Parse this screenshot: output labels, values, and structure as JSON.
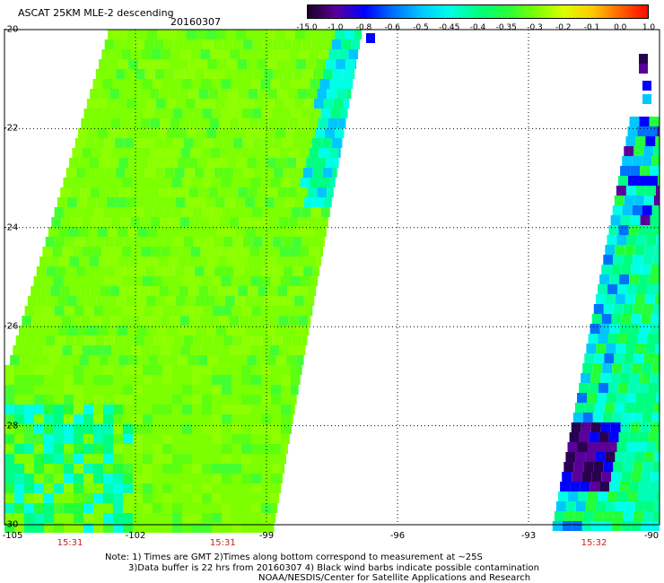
{
  "header": {
    "title": "ASCAT 25KM MLE-2 descending",
    "date": "20160307"
  },
  "colorbar": {
    "labels": [
      "-15.0",
      "-1.0",
      "-0.8",
      "-0.6",
      "-0.5",
      "-0.45",
      "-0.4",
      "-0.35",
      "-0.3",
      "-0.2",
      "-0.1",
      "0.0",
      "1.0"
    ],
    "colors": [
      "#1a0028",
      "#5a009a",
      "#0000ff",
      "#0070ff",
      "#00c8ff",
      "#00ffe6",
      "#00ff80",
      "#24ff3c",
      "#7cff00",
      "#dcff00",
      "#ffc800",
      "#ff6000",
      "#ff0000"
    ]
  },
  "map": {
    "lat_labels": [
      "-20",
      "-22",
      "-24",
      "-26",
      "-28",
      "-30"
    ],
    "lon_labels": [
      "-105",
      "-102",
      "-99",
      "-96",
      "-93",
      "-90"
    ],
    "lat_range": [
      -30,
      -20
    ],
    "lon_range": [
      -105,
      -90
    ],
    "time_labels": [
      {
        "lon": -103.5,
        "text": "15:31"
      },
      {
        "lon": -100.0,
        "text": "15:31"
      },
      {
        "lon": -91.5,
        "text": "15:32"
      }
    ]
  },
  "notes": {
    "line1": "Note: 1) Times are GMT 2)Times along bottom correspond to measurement at ~25S",
    "line2": "3)Data buffer is 22 hrs from 20160307 4) Black wind barbs indicate possible contamination",
    "line3": "NOAA/NESDIS/Center for Satellite Applications and Research"
  }
}
